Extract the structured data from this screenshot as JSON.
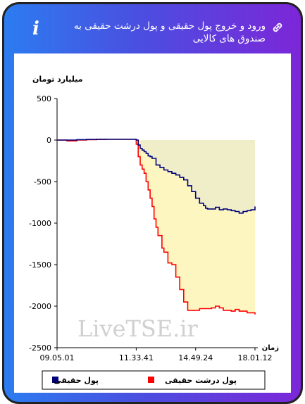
{
  "header": {
    "title": "ورود و خروج پول حقیقی و پول درشت حقیقی به صندوق های کالایی"
  },
  "watermark": "LiveTSE.ir",
  "chart_data": {
    "type": "line",
    "ylabel": "میلیارد تومان",
    "xlabel": "زمان",
    "ylim": [
      -2500,
      500
    ],
    "yticks": [
      500,
      0,
      -500,
      -1000,
      -1500,
      -2000,
      -2500
    ],
    "xlim": [
      0,
      100
    ],
    "xtick_labels": [
      "09.05.01",
      "11.33.41",
      "14.49.24",
      "18.01.12"
    ],
    "xtick_positions": [
      0,
      40,
      70,
      100
    ],
    "colors": {
      "real_money": "#00007a",
      "big_real_money": "#ff0000",
      "area_real": "#f0eec8",
      "area_big": "#fdf6c0"
    },
    "series": [
      {
        "name": "پول حقیقی",
        "x": [
          0,
          5,
          10,
          15,
          20,
          25,
          30,
          35,
          39,
          40,
          41,
          42,
          43,
          44,
          45,
          46,
          47,
          48,
          50,
          52,
          54,
          56,
          58,
          60,
          62,
          64,
          66,
          68,
          70,
          72,
          74,
          75,
          76,
          78,
          80,
          82,
          84,
          86,
          88,
          90,
          92,
          94,
          96,
          98,
          100
        ],
        "y": [
          0,
          0,
          5,
          8,
          10,
          10,
          10,
          10,
          10,
          0,
          -60,
          -100,
          -120,
          -140,
          -160,
          -190,
          -200,
          -220,
          -300,
          -330,
          -360,
          -380,
          -400,
          -420,
          -450,
          -480,
          -550,
          -620,
          -700,
          -760,
          -790,
          -820,
          -830,
          -830,
          -810,
          -840,
          -830,
          -840,
          -850,
          -860,
          -880,
          -860,
          -850,
          -840,
          -800
        ]
      },
      {
        "name": "پول درشت حقیقی",
        "x": [
          0,
          5,
          10,
          15,
          20,
          25,
          30,
          35,
          39,
          40,
          41,
          42,
          43,
          44,
          45,
          46,
          47,
          48,
          49,
          50,
          51,
          52,
          53,
          54,
          56,
          58,
          60,
          62,
          64,
          66,
          68,
          70,
          72,
          74,
          76,
          78,
          80,
          82,
          84,
          86,
          88,
          90,
          92,
          94,
          96,
          98,
          100
        ],
        "y": [
          0,
          -10,
          0,
          5,
          8,
          10,
          10,
          10,
          10,
          -50,
          -200,
          -300,
          -350,
          -400,
          -500,
          -600,
          -700,
          -800,
          -950,
          -1050,
          -1150,
          -1150,
          -1300,
          -1350,
          -1480,
          -1500,
          -1650,
          -1800,
          -1950,
          -2050,
          -2050,
          -2050,
          -2030,
          -2030,
          -2030,
          -2020,
          -2000,
          -2020,
          -2050,
          -2050,
          -2060,
          -2040,
          -2060,
          -2060,
          -2080,
          -2080,
          -2100
        ]
      }
    ],
    "legend": [
      "پول حقیقی",
      "پول درشت حقیقی"
    ],
    "legend_position": "bottom"
  }
}
